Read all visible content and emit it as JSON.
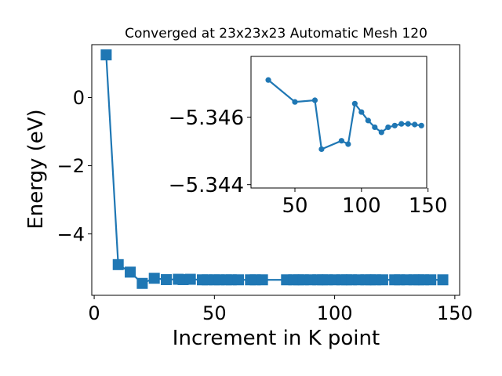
{
  "chart_data": [
    {
      "type": "line",
      "title": "Converged at 23x23x23 Automatic Mesh 120",
      "xlabel": "Increment in K point",
      "ylabel": "Energy (eV)",
      "xlim": [
        -1,
        152
      ],
      "ylim": [
        -5.8,
        1.55
      ],
      "xticks": [
        0,
        50,
        100,
        150
      ],
      "yticks": [
        0,
        -2,
        -4
      ],
      "ytick_labels": [
        "0",
        "−2",
        "−4"
      ],
      "marker": "square",
      "color": "#1f77b4",
      "series": [
        {
          "x": [
            5,
            10,
            15,
            20,
            25,
            30,
            35,
            37,
            40,
            45,
            47,
            50,
            52,
            55,
            57,
            60,
            65,
            67,
            70,
            80,
            83,
            85,
            87,
            90,
            93,
            95,
            97,
            100,
            103,
            105,
            107,
            110,
            113,
            115,
            117,
            120,
            125,
            127,
            130,
            133,
            135,
            137,
            140,
            145
          ],
          "y": [
            1.25,
            -4.9,
            -5.12,
            -5.45,
            -5.3,
            -5.34,
            -5.33,
            -5.34,
            -5.33,
            -5.346,
            -5.346,
            -5.346,
            -5.346,
            -5.346,
            -5.346,
            -5.346,
            -5.346,
            -5.346,
            -5.346,
            -5.346,
            -5.346,
            -5.346,
            -5.346,
            -5.346,
            -5.346,
            -5.346,
            -5.346,
            -5.346,
            -5.346,
            -5.346,
            -5.346,
            -5.346,
            -5.346,
            -5.346,
            -5.346,
            -5.346,
            -5.346,
            -5.346,
            -5.346,
            -5.346,
            -5.346,
            -5.346,
            -5.346,
            -5.346
          ]
        }
      ]
    },
    {
      "type": "line",
      "xlim": [
        17,
        149
      ],
      "ylim": [
        -5.3439,
        -5.3478
      ],
      "xticks": [
        50,
        100,
        150
      ],
      "yticks": [
        -5.346,
        -5.344
      ],
      "ytick_labels": [
        "−5.346",
        "−5.344"
      ],
      "marker": "circle",
      "color": "#1f77b4",
      "series": [
        {
          "x": [
            30,
            50,
            65,
            70,
            85,
            90,
            95,
            100,
            105,
            110,
            115,
            120,
            125,
            130,
            135,
            140,
            145
          ],
          "y": [
            -5.3471,
            -5.34645,
            -5.3465,
            -5.34505,
            -5.3453,
            -5.3452,
            -5.3464,
            -5.34615,
            -5.3459,
            -5.3457,
            -5.34555,
            -5.3457,
            -5.34575,
            -5.3458,
            -5.3458,
            -5.34578,
            -5.34575
          ]
        }
      ]
    }
  ]
}
